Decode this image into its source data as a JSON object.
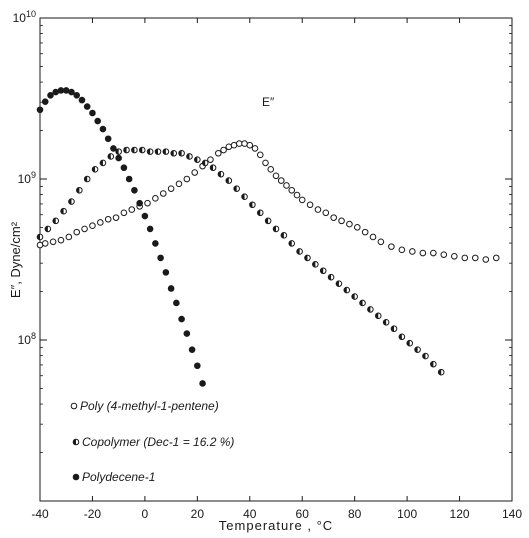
{
  "chart_data": {
    "type": "scatter",
    "title": "",
    "xlabel": "Temperature , °C",
    "ylabel": "E″, Dyne/cm²",
    "xlim": [
      -40,
      140
    ],
    "ylim_log10": [
      7,
      10
    ],
    "y_scale": "log",
    "x_ticks": [
      "-40",
      "-20",
      "0",
      "20",
      "40",
      "60",
      "80",
      "100",
      "120",
      "140"
    ],
    "x_tick_values": [
      -40,
      -20,
      0,
      20,
      40,
      60,
      80,
      100,
      120,
      140
    ],
    "y_ticks": [
      {
        "value_log10": 10,
        "base": "10",
        "exp": "10"
      },
      {
        "value_log10": 9,
        "base": "10",
        "exp": "9"
      },
      {
        "value_log10": 8,
        "base": "10",
        "exp": "8"
      }
    ],
    "annotation": "E″",
    "legend_position": "bottom-left",
    "grid": false,
    "series": [
      {
        "name": "Poly (4-methyl-1-pentene)",
        "marker": "open",
        "points": [
          [
            -40,
            8.59
          ],
          [
            -38,
            8.6
          ],
          [
            -35,
            8.61
          ],
          [
            -32,
            8.62
          ],
          [
            -29,
            8.64
          ],
          [
            -26,
            8.67
          ],
          [
            -23,
            8.69
          ],
          [
            -20,
            8.71
          ],
          [
            -17,
            8.73
          ],
          [
            -14,
            8.75
          ],
          [
            -11,
            8.76
          ],
          [
            -8,
            8.79
          ],
          [
            -5,
            8.81
          ],
          [
            -2,
            8.83
          ],
          [
            1,
            8.85
          ],
          [
            4,
            8.88
          ],
          [
            7,
            8.91
          ],
          [
            10,
            8.94
          ],
          [
            13,
            8.97
          ],
          [
            16,
            9.0
          ],
          [
            19,
            9.04
          ],
          [
            22,
            9.08
          ],
          [
            25,
            9.12
          ],
          [
            28,
            9.16
          ],
          [
            30,
            9.18
          ],
          [
            32,
            9.2
          ],
          [
            34,
            9.21
          ],
          [
            36,
            9.22
          ],
          [
            38,
            9.22
          ],
          [
            40,
            9.21
          ],
          [
            42,
            9.19
          ],
          [
            44,
            9.15
          ],
          [
            46,
            9.1
          ],
          [
            48,
            9.06
          ],
          [
            50,
            9.02
          ],
          [
            52,
            8.99
          ],
          [
            54,
            8.96
          ],
          [
            56,
            8.93
          ],
          [
            58,
            8.9
          ],
          [
            60,
            8.87
          ],
          [
            63,
            8.84
          ],
          [
            66,
            8.81
          ],
          [
            69,
            8.79
          ],
          [
            72,
            8.76
          ],
          [
            75,
            8.74
          ],
          [
            78,
            8.72
          ],
          [
            81,
            8.7
          ],
          [
            84,
            8.67
          ],
          [
            87,
            8.64
          ],
          [
            90,
            8.61
          ],
          [
            94,
            8.58
          ],
          [
            98,
            8.56
          ],
          [
            102,
            8.55
          ],
          [
            106,
            8.54
          ],
          [
            110,
            8.54
          ],
          [
            114,
            8.53
          ],
          [
            118,
            8.52
          ],
          [
            122,
            8.51
          ],
          [
            126,
            8.51
          ],
          [
            130,
            8.5
          ],
          [
            134,
            8.51
          ]
        ]
      },
      {
        "name": "Copolymer (Dec-1 = 16.2 %)",
        "marker": "half",
        "points": [
          [
            -40,
            8.64
          ],
          [
            -37,
            8.69
          ],
          [
            -34,
            8.74
          ],
          [
            -31,
            8.8
          ],
          [
            -28,
            8.86
          ],
          [
            -25,
            8.93
          ],
          [
            -22,
            9.0
          ],
          [
            -19,
            9.06
          ],
          [
            -16,
            9.1
          ],
          [
            -13,
            9.14
          ],
          [
            -10,
            9.17
          ],
          [
            -7,
            9.18
          ],
          [
            -4,
            9.18
          ],
          [
            -1,
            9.18
          ],
          [
            2,
            9.17
          ],
          [
            5,
            9.17
          ],
          [
            8,
            9.17
          ],
          [
            11,
            9.16
          ],
          [
            14,
            9.16
          ],
          [
            17,
            9.14
          ],
          [
            20,
            9.12
          ],
          [
            23,
            9.1
          ],
          [
            26,
            9.07
          ],
          [
            29,
            9.03
          ],
          [
            32,
            8.99
          ],
          [
            35,
            8.94
          ],
          [
            38,
            8.89
          ],
          [
            41,
            8.84
          ],
          [
            44,
            8.79
          ],
          [
            47,
            8.74
          ],
          [
            50,
            8.69
          ],
          [
            53,
            8.65
          ],
          [
            56,
            8.6
          ],
          [
            59,
            8.55
          ],
          [
            62,
            8.51
          ],
          [
            65,
            8.47
          ],
          [
            68,
            8.43
          ],
          [
            71,
            8.39
          ],
          [
            74,
            8.35
          ],
          [
            77,
            8.31
          ],
          [
            80,
            8.27
          ],
          [
            83,
            8.23
          ],
          [
            86,
            8.19
          ],
          [
            89,
            8.15
          ],
          [
            92,
            8.11
          ],
          [
            95,
            8.07
          ],
          [
            98,
            8.02
          ],
          [
            101,
            7.98
          ],
          [
            104,
            7.94
          ],
          [
            107,
            7.9
          ],
          [
            110,
            7.85
          ],
          [
            113,
            7.8
          ]
        ]
      },
      {
        "name": "Polydecene-1",
        "marker": "filled",
        "points": [
          [
            -40,
            9.43
          ],
          [
            -38,
            9.48
          ],
          [
            -36,
            9.52
          ],
          [
            -34,
            9.54
          ],
          [
            -32,
            9.55
          ],
          [
            -30,
            9.55
          ],
          [
            -28,
            9.54
          ],
          [
            -26,
            9.52
          ],
          [
            -24,
            9.49
          ],
          [
            -22,
            9.45
          ],
          [
            -20,
            9.41
          ],
          [
            -18,
            9.36
          ],
          [
            -16,
            9.31
          ],
          [
            -14,
            9.25
          ],
          [
            -12,
            9.19
          ],
          [
            -10,
            9.13
          ],
          [
            -8,
            9.07
          ],
          [
            -6,
            9.0
          ],
          [
            -4,
            8.93
          ],
          [
            -2,
            8.85
          ],
          [
            0,
            8.77
          ],
          [
            2,
            8.69
          ],
          [
            4,
            8.6
          ],
          [
            6,
            8.51
          ],
          [
            8,
            8.42
          ],
          [
            10,
            8.32
          ],
          [
            12,
            8.23
          ],
          [
            14,
            8.13
          ],
          [
            16,
            8.04
          ],
          [
            18,
            7.94
          ],
          [
            20,
            7.84
          ],
          [
            22,
            7.73
          ]
        ]
      }
    ]
  }
}
